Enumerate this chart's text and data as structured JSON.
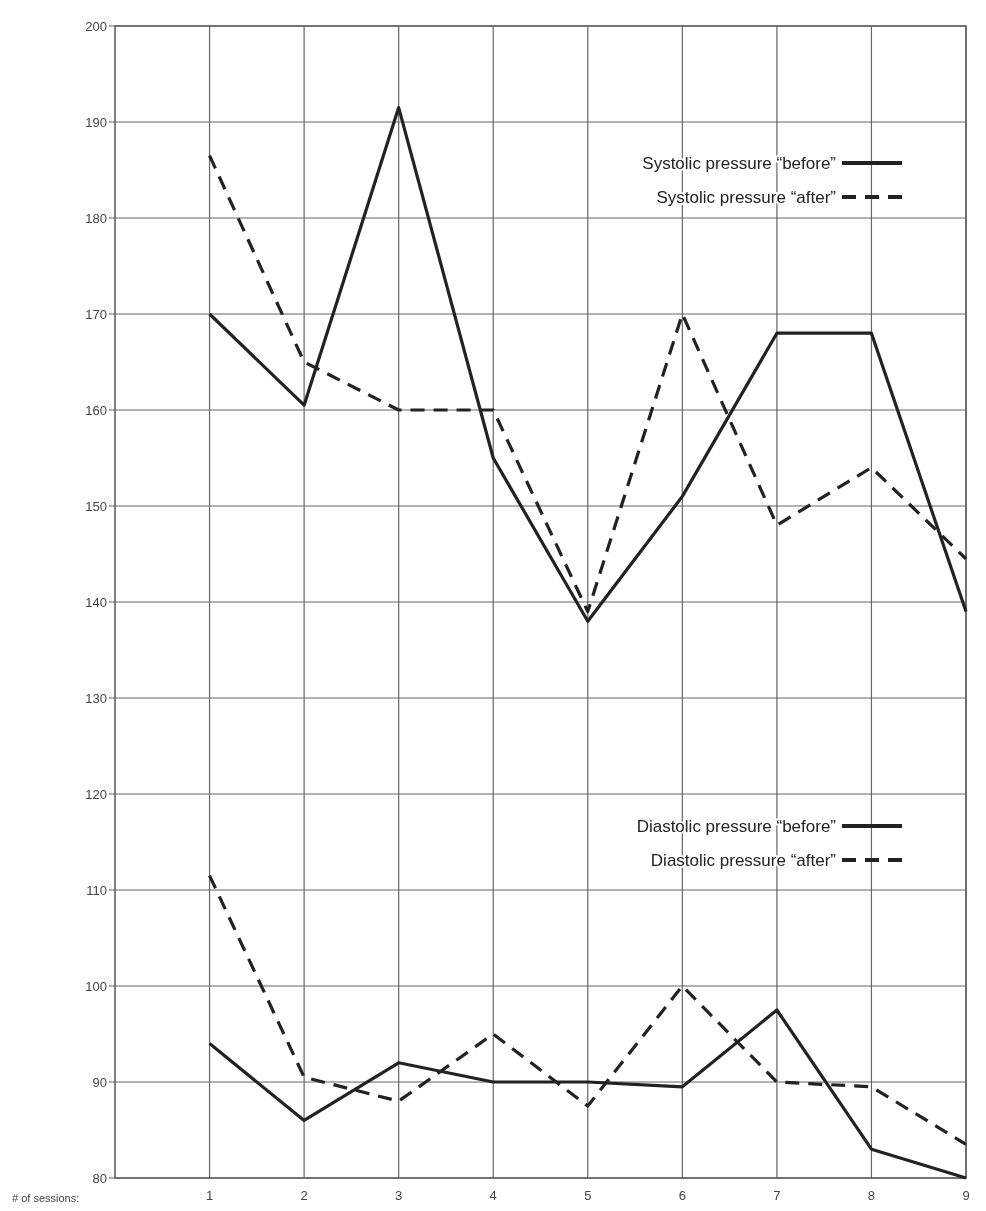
{
  "chart_data": {
    "type": "line",
    "xlabel": "# of sessions:",
    "x": [
      1,
      2,
      3,
      4,
      5,
      6,
      7,
      8,
      9
    ],
    "xlim": [
      0,
      9
    ],
    "xticks": [
      1,
      2,
      3,
      4,
      5,
      6,
      7,
      8,
      9
    ],
    "ylim": [
      80,
      200
    ],
    "yticks": [
      80,
      90,
      100,
      110,
      120,
      130,
      140,
      150,
      160,
      170,
      180,
      190,
      200
    ],
    "grid": true,
    "legend": "top right",
    "marker": "none",
    "series": [
      {
        "name": "Systolic pressure “before”",
        "color": "#222222",
        "line_style": "solid",
        "values": [
          170,
          160.5,
          191.5,
          155,
          138,
          151,
          168,
          168,
          139
        ]
      },
      {
        "name": "Systolic pressure “after”",
        "color": "#222222",
        "line_style": "dashed",
        "values": [
          186.5,
          165,
          160,
          160,
          139,
          170,
          148,
          154,
          144.5
        ]
      },
      {
        "name": "Diastolic pressure “before”",
        "color": "#222222",
        "line_style": "solid",
        "values": [
          94,
          86,
          92,
          90,
          90,
          89.5,
          97.5,
          83,
          80
        ]
      },
      {
        "name": "Diastolic pressure “after”",
        "color": "#222222",
        "line_style": "dashed",
        "values": [
          111.5,
          90.5,
          88,
          95,
          87.5,
          100,
          90,
          89.5,
          83.5
        ]
      }
    ]
  }
}
